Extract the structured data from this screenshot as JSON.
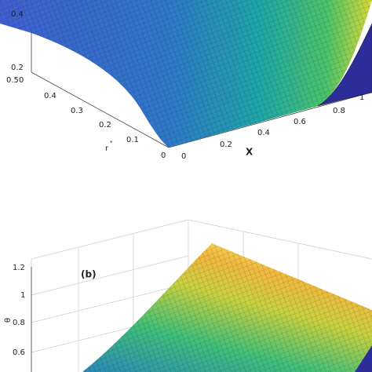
{
  "panel_a": {
    "z_ticks": [
      "0.4",
      "0.2",
      "0"
    ],
    "r_ticks": [
      "0.5",
      "0.4",
      "0.3",
      "0.2",
      "0.1",
      "0"
    ],
    "r_label": "r",
    "r_label_sup": "*",
    "x_ticks": [
      "0",
      "0.2",
      "0.4",
      "0.6",
      "0.8",
      "1"
    ],
    "x_label": "X"
  },
  "panel_b": {
    "panel_label": "(b)",
    "z_ticks": [
      "1.2",
      "1",
      "0.8",
      "0.6"
    ],
    "z_label": "θ"
  }
}
